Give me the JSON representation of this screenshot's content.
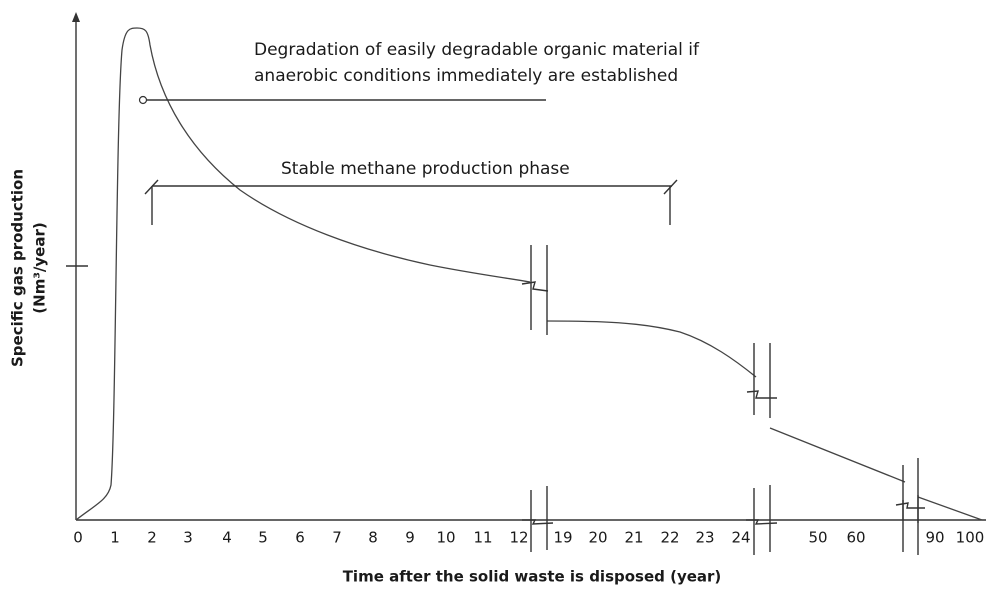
{
  "title": null,
  "annotations": [
    "Degradation of easily degradable organic material if",
    "anaerobic conditions immediately are established",
    "Stable methane production phase"
  ],
  "x_axis": {
    "label": "Time after the solid waste is disposed (year)",
    "ticks": [
      "0",
      "1",
      "2",
      "3",
      "4",
      "5",
      "6",
      "7",
      "8",
      "9",
      "10",
      "11",
      "12",
      "19",
      "20",
      "21",
      "22",
      "23",
      "24",
      "50",
      "60",
      "90",
      "100"
    ]
  },
  "y_axis": {
    "label": [
      "Specific gas production",
      "(Nm³/year)"
    ]
  }
}
